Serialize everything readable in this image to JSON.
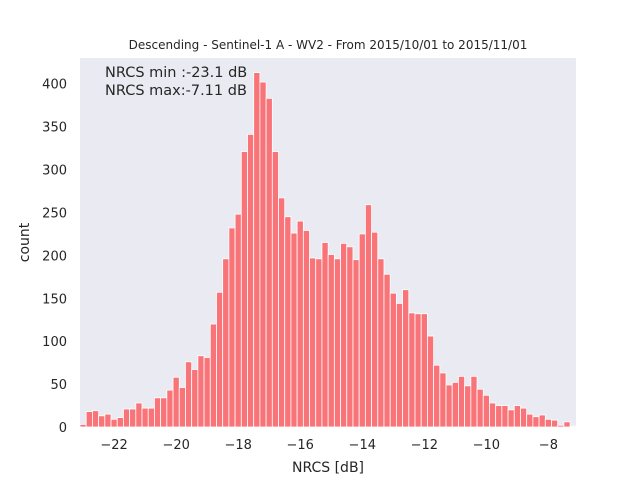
{
  "chart_data": {
    "type": "bar",
    "title": "Descending - Sentinel-1 A - WV2 - From 2015/10/01 to 2015/11/01",
    "xlabel": "NRCS [dB]",
    "ylabel": "count",
    "xlim": [
      -23.1,
      -7.11
    ],
    "ylim": [
      0,
      430
    ],
    "grid": false,
    "background_color": "#eaeaf2",
    "bar_color": "#f87478",
    "bar_edge_color": "#ffffff",
    "x_ticks": [
      -22,
      -20,
      -18,
      -16,
      -14,
      -12,
      -10,
      -8
    ],
    "x_tick_labels": [
      "−22",
      "−20",
      "−18",
      "−16",
      "−14",
      "−12",
      "−10",
      "−8"
    ],
    "y_ticks": [
      0,
      50,
      100,
      150,
      200,
      250,
      300,
      350,
      400
    ],
    "y_tick_labels": [
      "0",
      "50",
      "100",
      "150",
      "200",
      "250",
      "300",
      "350",
      "400"
    ],
    "annotations": [
      "NRCS min :-23.1 dB",
      "NRCS max:-7.11 dB"
    ],
    "bin_start": -23.1,
    "bin_width": 0.2,
    "values": [
      3,
      18,
      19,
      13,
      15,
      9,
      11,
      21,
      21,
      28,
      22,
      22,
      34,
      34,
      43,
      58,
      46,
      76,
      67,
      83,
      81,
      120,
      157,
      196,
      232,
      248,
      321,
      341,
      413,
      402,
      383,
      321,
      267,
      245,
      226,
      240,
      229,
      197,
      196,
      215,
      201,
      196,
      214,
      210,
      195,
      225,
      259,
      227,
      196,
      178,
      156,
      144,
      160,
      133,
      132,
      132,
      106,
      72,
      63,
      49,
      52,
      59,
      48,
      59,
      44,
      37,
      28,
      25,
      25,
      20,
      25,
      22,
      15,
      12,
      14,
      9,
      8,
      2,
      6,
      1
    ]
  }
}
